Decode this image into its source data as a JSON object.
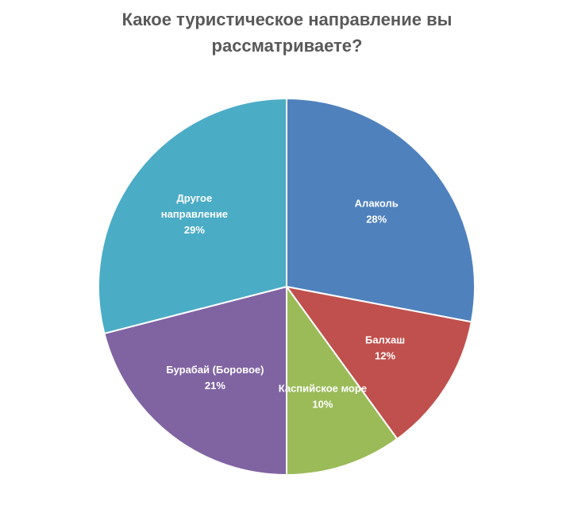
{
  "chart_data": {
    "type": "pie",
    "title_lines": [
      "Какое туристическое направление вы",
      "рассматриваете?"
    ],
    "slices": [
      {
        "label_lines": [
          "Алаколь"
        ],
        "value": 28,
        "value_label": "28%",
        "color": "#4F81BD"
      },
      {
        "label_lines": [
          "Балхаш"
        ],
        "value": 12,
        "value_label": "12%",
        "color": "#C0504D"
      },
      {
        "label_lines": [
          "Каспийское море"
        ],
        "value": 10,
        "value_label": "10%",
        "color": "#9BBB59"
      },
      {
        "label_lines": [
          "Бурабай (Боровое)"
        ],
        "value": 21,
        "value_label": "21%",
        "color": "#8064A2"
      },
      {
        "label_lines": [
          "Другое",
          "направление"
        ],
        "value": 29,
        "value_label": "29%",
        "color": "#4BACC6"
      }
    ],
    "start_angle": "12 o'clock",
    "direction": "clockwise",
    "legend": "none",
    "data_labels": "inside"
  }
}
